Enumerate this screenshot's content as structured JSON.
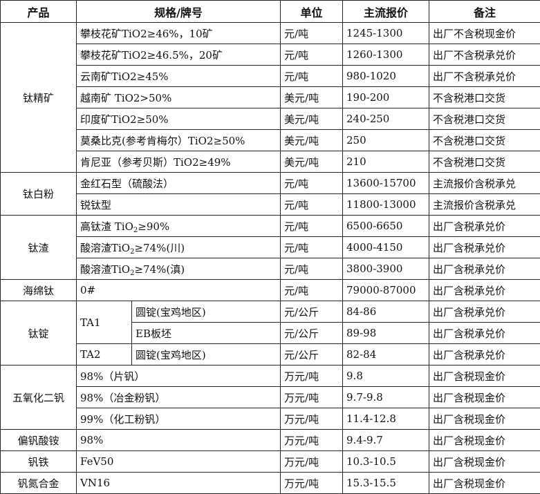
{
  "headers": {
    "product": "产品",
    "spec": "规格/牌号",
    "unit": "单位",
    "price": "主流报价",
    "note": "备注"
  },
  "groups": [
    {
      "product": "钛精矿",
      "rows": [
        {
          "spec": {
            "pre": "攀枝花矿TiO2≥46%，10矿"
          },
          "unit": "元/吨",
          "price": "1245-1300",
          "note": "出厂不含税现金价"
        },
        {
          "spec": {
            "pre": "攀枝花矿TiO2≥46.5%，20矿"
          },
          "unit": "元/吨",
          "price": "1260-1300",
          "note": "出厂不含税承兑价"
        },
        {
          "spec": {
            "pre": "云南矿TiO2≥45%"
          },
          "unit": "元/吨",
          "price": "980-1020",
          "note": "出厂不含税承兑价"
        },
        {
          "spec": {
            "pre": "越南矿 TiO2>50%"
          },
          "unit": "美元/吨",
          "price": "190-200",
          "note": "不含税港口交货"
        },
        {
          "spec": {
            "pre": "印度矿TiO2≥50%"
          },
          "unit": "美元/吨",
          "price": "240-250",
          "note": "不含税港口交货"
        },
        {
          "spec": {
            "pre": "莫桑比克(参考肯梅尔）TiO2≥50%"
          },
          "unit": "美元/吨",
          "price": "250",
          "note": "不含税港口交货"
        },
        {
          "spec": {
            "pre": "肯尼亚（参考贝斯）TiO2≥49%"
          },
          "unit": "美元/吨",
          "price": "210",
          "note": "不含税港口交货"
        }
      ]
    },
    {
      "product": "钛白粉",
      "rows": [
        {
          "spec": {
            "pre": "金红石型（硫酸法）"
          },
          "unit": "元/吨",
          "price": "13600-15700",
          "note": "主流报价含税承兑"
        },
        {
          "spec": {
            "pre": "锐钛型"
          },
          "unit": "元/吨",
          "price": "11800-13000",
          "note": "主流报价含税承兑"
        }
      ]
    },
    {
      "product": "钛渣",
      "rows": [
        {
          "spec": {
            "pre": "高钛渣 TiO",
            "sub": "2",
            "post": "≥90%"
          },
          "unit": "元/吨",
          "price": "6500-6650",
          "note": "出厂含税承兑价"
        },
        {
          "spec": {
            "pre": "酸溶渣TiO",
            "sub": "2",
            "post": "≥74%(川)"
          },
          "unit": "元/吨",
          "price": "4000-4150",
          "note": "出厂含税承兑价"
        },
        {
          "spec": {
            "pre": "酸溶渣TiO",
            "sub": "2",
            "post": "≥74%(滇)"
          },
          "unit": "元/吨",
          "price": "3800-3900",
          "note": "出厂含税承兑价"
        }
      ]
    },
    {
      "product": "海绵钛",
      "rows": [
        {
          "spec": {
            "pre": "0#"
          },
          "unit": "元/吨",
          "price": "79000-87000",
          "note": "出厂含税承兑价"
        }
      ]
    },
    {
      "product": "钛锭",
      "rows": [
        {
          "grade": "TA1",
          "gradeSpan": 2,
          "spec": {
            "pre": "圆锭(宝鸡地区)"
          },
          "unit": "元/公斤",
          "price": "84-86",
          "note": "出厂含税承兑价"
        },
        {
          "spec": {
            "pre": "EB板坯"
          },
          "unit": "元/公斤",
          "price": "89-98",
          "note": "出厂含税承兑价"
        },
        {
          "grade": "TA2",
          "gradeSpan": 1,
          "spec": {
            "pre": "圆锭(宝鸡地区)"
          },
          "unit": "元/公斤",
          "price": "82-84",
          "note": "出厂含税承兑价"
        }
      ]
    },
    {
      "product": "五氧化二钒",
      "rows": [
        {
          "spec": {
            "pre": "98%（片钒）"
          },
          "unit": "万元/吨",
          "price": "9.8",
          "note": "出厂含税现金价"
        },
        {
          "spec": {
            "pre": "98%（冶金粉钒）"
          },
          "unit": "万元/吨",
          "price": "9.7-9.8",
          "note": "出厂含税现金价"
        },
        {
          "spec": {
            "pre": "99%（化工粉钒）"
          },
          "unit": "万元/吨",
          "price": "11.4-12.8",
          "note": "出厂含税现金价"
        }
      ]
    },
    {
      "product": "偏钒酸铵",
      "rows": [
        {
          "spec": {
            "pre": "98%"
          },
          "unit": "万元/吨",
          "price": "9.4-9.7",
          "note": "出厂含税现金价"
        }
      ]
    },
    {
      "product": "钒铁",
      "rows": [
        {
          "spec": {
            "pre": "FeV50"
          },
          "unit": "万元/吨",
          "price": "10.3-10.5",
          "note": "出厂含税现金价"
        }
      ]
    },
    {
      "product": "钒氮合金",
      "rows": [
        {
          "spec": {
            "pre": "VN16"
          },
          "unit": "万元/吨",
          "price": "15.3-15.5",
          "note": "出厂含税现金价"
        }
      ]
    }
  ]
}
